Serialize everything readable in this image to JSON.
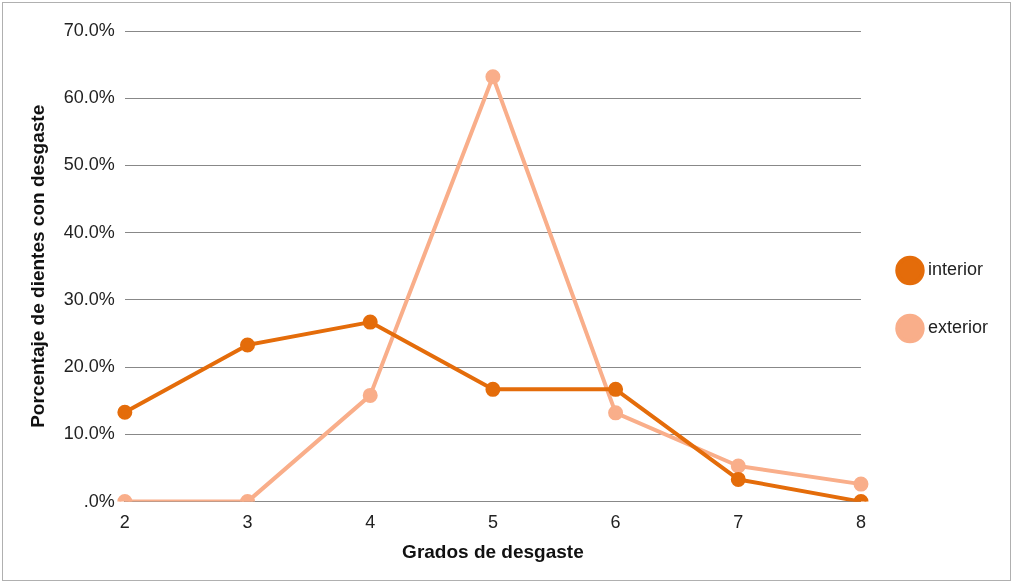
{
  "chart_data": {
    "type": "line",
    "xlabel": "Grados de desgaste",
    "ylabel": "Porcentaje de dientes con desgaste",
    "categories": [
      "2",
      "3",
      "4",
      "5",
      "6",
      "7",
      "8"
    ],
    "series": [
      {
        "name": "interior",
        "color": "#e46c0a",
        "values": [
          13.3,
          23.3,
          26.7,
          16.7,
          16.7,
          3.3,
          0
        ]
      },
      {
        "name": "exterior",
        "color": "#f9ae8a",
        "values": [
          0,
          0,
          15.8,
          63.2,
          13.2,
          5.3,
          2.6
        ]
      }
    ],
    "ylim": [
      0,
      70
    ],
    "yticks": [
      {
        "value": 0,
        "label": ".0%"
      },
      {
        "value": 10,
        "label": "10.0%"
      },
      {
        "value": 20,
        "label": "20.0%"
      },
      {
        "value": 30,
        "label": "30.0%"
      },
      {
        "value": 40,
        "label": "40.0%"
      },
      {
        "value": 50,
        "label": "50.0%"
      },
      {
        "value": 60,
        "label": "60.0%"
      },
      {
        "value": 70,
        "label": "70.0%"
      }
    ],
    "grid": "y",
    "legend": "right",
    "marker": "circle",
    "line_style": "solid"
  }
}
